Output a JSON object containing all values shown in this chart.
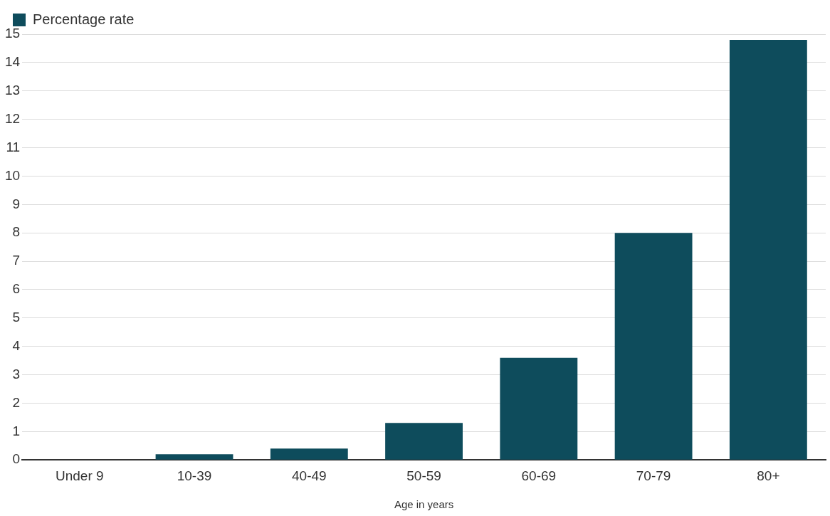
{
  "chart_data": {
    "type": "bar",
    "xlabel": "Age in years",
    "categories": [
      "Under 9",
      "10-39",
      "40-49",
      "50-59",
      "60-69",
      "70-79",
      "80+"
    ],
    "series": [
      {
        "name": "Percentage rate",
        "color": "#0e4c5c",
        "values": [
          0,
          0.2,
          0.4,
          1.3,
          3.6,
          8.0,
          14.8
        ]
      }
    ],
    "ylim": [
      0,
      15
    ],
    "yticks": [
      0,
      1,
      2,
      3,
      4,
      5,
      6,
      7,
      8,
      9,
      10,
      11,
      12,
      13,
      14,
      15
    ],
    "grid": "y",
    "legend": "top left"
  }
}
